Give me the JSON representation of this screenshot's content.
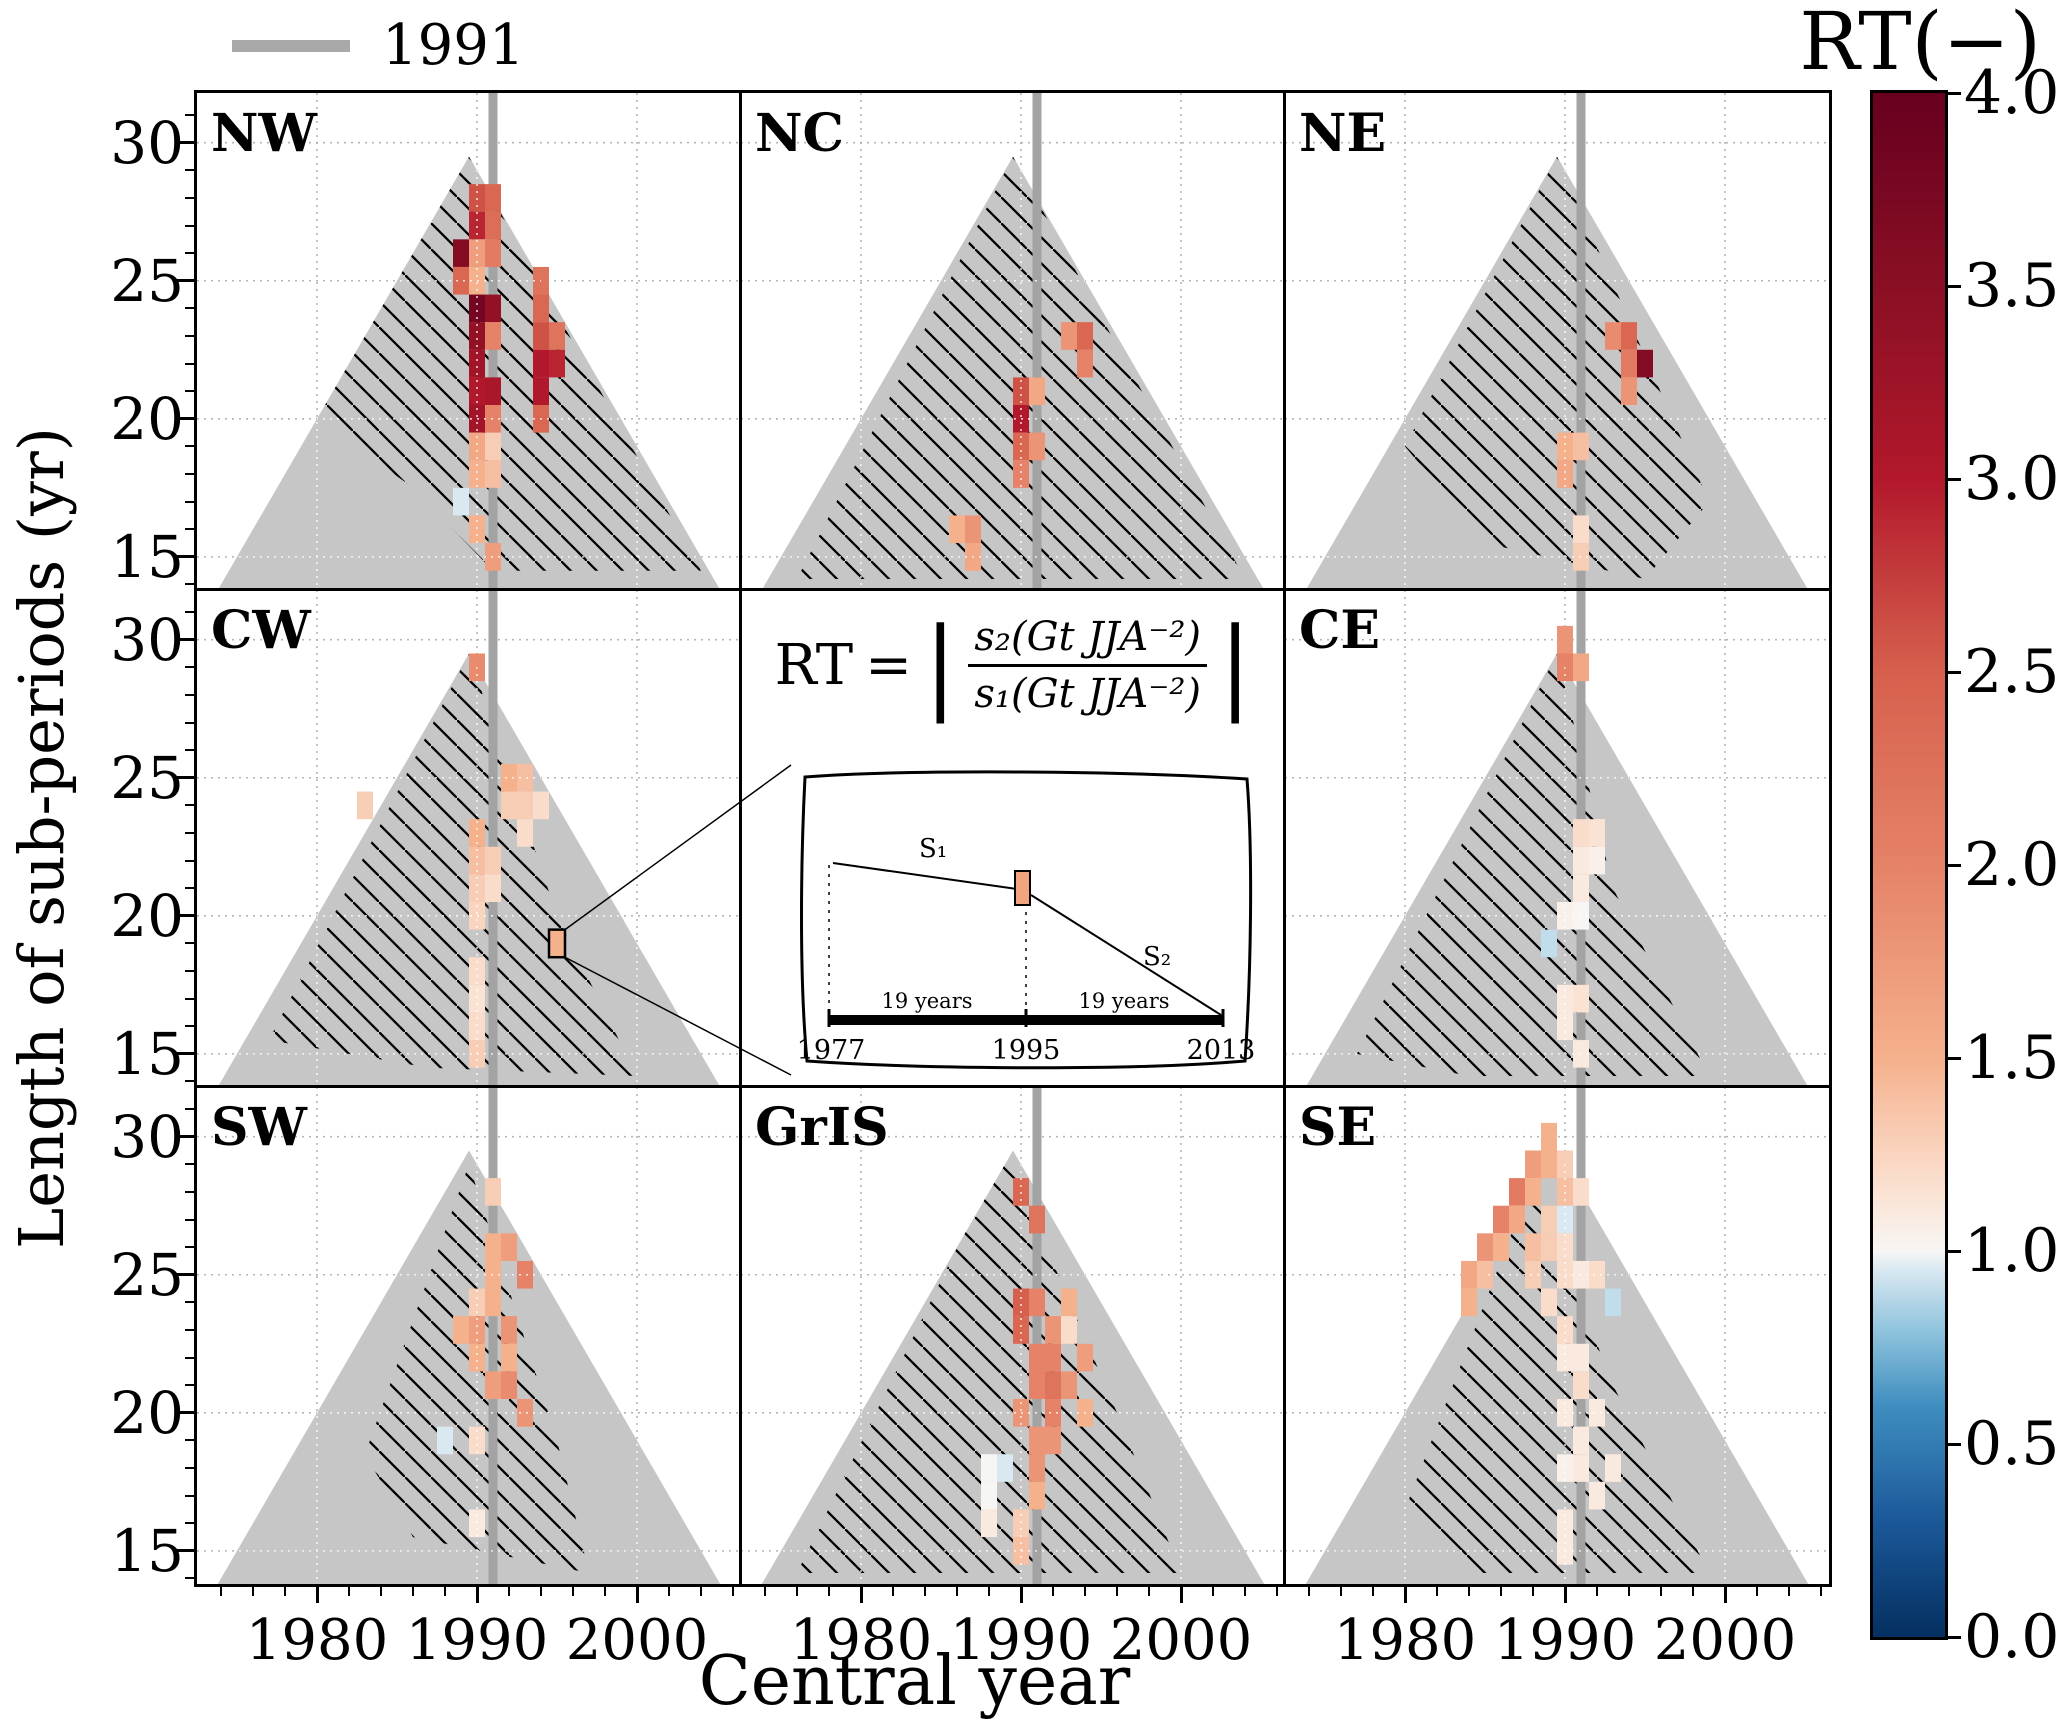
{
  "legend": {
    "label": "1991",
    "line_color": "#a9a9a9"
  },
  "formula": {
    "lhs": "RT",
    "equals": "=",
    "bar": "|",
    "numerator": "s₂(Gt JJA⁻²)",
    "denominator": "s₁(Gt JJA⁻²)"
  },
  "inset": {
    "s1_label": "S₁",
    "s2_label": "S₂",
    "left_segment": "19 years",
    "right_segment": "19 years",
    "year_start": "1977",
    "year_mid": "1995",
    "year_end": "2013",
    "cell_color": "#f2a47e"
  },
  "chart_data": {
    "type": "heatmap",
    "xlabel": "Central year",
    "ylabel": "Length of sub-periods (yr)",
    "x_ticks": [
      1980,
      1990,
      2000
    ],
    "y_ticks": [
      15,
      20,
      25,
      30
    ],
    "xlim": [
      1972.5,
      2006.5
    ],
    "ylim": [
      13.8,
      31.8
    ],
    "x_minor_step": 2,
    "y_minor_step": 1,
    "grid": true,
    "colorbar": {
      "title": "RT(−)",
      "vmin": 0,
      "vmax": 4,
      "tick_values": [
        0,
        0.5,
        1,
        1.5,
        2,
        2.5,
        3,
        3.5,
        4
      ],
      "stops": [
        [
          0.0,
          "#053061"
        ],
        [
          0.3,
          "#1b5899"
        ],
        [
          0.6,
          "#3f8ec0"
        ],
        [
          0.8,
          "#92c5de"
        ],
        [
          0.95,
          "#d9e8f1"
        ],
        [
          1.0,
          "#f7f6f4"
        ],
        [
          1.15,
          "#fbe3d4"
        ],
        [
          1.5,
          "#f5b08c"
        ],
        [
          2.0,
          "#e58267"
        ],
        [
          2.5,
          "#d6604d"
        ],
        [
          3.0,
          "#b2182b"
        ],
        [
          3.5,
          "#8a0f24"
        ],
        [
          4.0,
          "#67001f"
        ]
      ]
    },
    "reference_line": {
      "year": 1991,
      "label": "1991",
      "color": "#a3a3a3"
    },
    "triangle": {
      "apex": [
        1989.5,
        29.5
      ],
      "base_y": 13.8,
      "color": "#c6c6c6"
    },
    "highlight_cell": {
      "panel": "CW",
      "central_year": 1995,
      "length": 19
    },
    "panels": [
      {
        "label": "NW",
        "pos": [
          0,
          0
        ],
        "hatch": [
          [
            1980,
            20
          ],
          [
            1989.5,
            29.5
          ],
          [
            2004,
            14.5
          ],
          [
            1991,
            14.5
          ],
          [
            1986,
            17.5
          ]
        ],
        "cells": [
          [
            1990,
            28,
            2.6
          ],
          [
            1991,
            28,
            2.4
          ],
          [
            1990,
            27,
            2.9
          ],
          [
            1991,
            27,
            2.3
          ],
          [
            1989,
            26,
            3.6
          ],
          [
            1990,
            26,
            1.7
          ],
          [
            1991,
            26,
            2.1
          ],
          [
            1989,
            25,
            2.4
          ],
          [
            1990,
            25,
            1.5
          ],
          [
            1994,
            25,
            2.2
          ],
          [
            1990,
            24,
            3.8
          ],
          [
            1991,
            24,
            3.4
          ],
          [
            1994,
            24,
            2.4
          ],
          [
            1990,
            23,
            3.4
          ],
          [
            1991,
            23,
            2.0
          ],
          [
            1994,
            23,
            2.6
          ],
          [
            1995,
            23,
            2.2
          ],
          [
            1990,
            22,
            3.2
          ],
          [
            1994,
            22,
            3.0
          ],
          [
            1995,
            22,
            2.9
          ],
          [
            1990,
            21,
            3.0
          ],
          [
            1991,
            21,
            3.1
          ],
          [
            1994,
            21,
            3.0
          ],
          [
            1990,
            20,
            3.2
          ],
          [
            1991,
            20,
            2.0
          ],
          [
            1994,
            20,
            2.4
          ],
          [
            1990,
            19,
            1.6
          ],
          [
            1991,
            19,
            1.3
          ],
          [
            1990,
            18,
            1.5
          ],
          [
            1991,
            18,
            1.4
          ],
          [
            1989,
            17,
            0.95
          ],
          [
            1990,
            16,
            1.5
          ],
          [
            1991,
            15,
            1.7
          ]
        ]
      },
      {
        "label": "NC",
        "pos": [
          0,
          1
        ],
        "hatch": [
          [
            1976,
            14.2
          ],
          [
            1989.5,
            29.5
          ],
          [
            2004,
            14.2
          ]
        ],
        "cells": [
          [
            1993,
            23,
            1.8
          ],
          [
            1994,
            23,
            2.4
          ],
          [
            1994,
            22,
            2.0
          ],
          [
            1990,
            21,
            2.6
          ],
          [
            1991,
            21,
            1.6
          ],
          [
            1990,
            20,
            3.0
          ],
          [
            1990,
            19,
            2.4
          ],
          [
            1991,
            19,
            1.8
          ],
          [
            1990,
            18,
            2.0
          ],
          [
            1986,
            16,
            1.5
          ],
          [
            1987,
            16,
            1.8
          ],
          [
            1987,
            15,
            1.6
          ]
        ]
      },
      {
        "label": "NE",
        "pos": [
          0,
          2
        ],
        "hatch": [
          [
            1980,
            19
          ],
          [
            1989.5,
            29.5
          ],
          [
            1999,
            17
          ],
          [
            1995,
            14.2
          ],
          [
            1985,
            15.5
          ]
        ],
        "cells": [
          [
            1993,
            23,
            1.9
          ],
          [
            1994,
            23,
            2.4
          ],
          [
            1994,
            22,
            2.1
          ],
          [
            1995,
            22,
            3.6
          ],
          [
            1994,
            21,
            1.8
          ],
          [
            1990,
            19,
            1.5
          ],
          [
            1991,
            19,
            1.4
          ],
          [
            1990,
            18,
            1.6
          ],
          [
            1991,
            16,
            1.2
          ],
          [
            1991,
            15,
            1.3
          ]
        ]
      },
      {
        "label": "CW",
        "pos": [
          1,
          0
        ],
        "hatch": [
          [
            1977,
            15.5
          ],
          [
            1989.5,
            29.5
          ],
          [
            1995,
            20
          ],
          [
            2000,
            14.2
          ],
          [
            1987,
            14.5
          ]
        ],
        "cells": [
          [
            1990,
            29,
            1.9
          ],
          [
            1983,
            24,
            1.3
          ],
          [
            1992,
            25,
            1.5
          ],
          [
            1993,
            25,
            1.4
          ],
          [
            1992,
            24,
            1.3
          ],
          [
            1993,
            24,
            1.3
          ],
          [
            1994,
            24,
            1.2
          ],
          [
            1990,
            23,
            1.5
          ],
          [
            1993,
            23,
            1.2
          ],
          [
            1990,
            22,
            1.4
          ],
          [
            1991,
            22,
            1.3
          ],
          [
            1990,
            21,
            1.3
          ],
          [
            1991,
            21,
            1.2
          ],
          [
            1990,
            20,
            1.25
          ],
          [
            1995,
            19,
            1.5
          ],
          [
            1990,
            18,
            1.2
          ],
          [
            1990,
            17,
            1.15
          ],
          [
            1990,
            16,
            1.2
          ],
          [
            1990,
            15,
            1.3
          ]
        ]
      },
      {
        "label": "CE",
        "pos": [
          1,
          2
        ],
        "hatch": [
          [
            1977,
            15
          ],
          [
            1989.5,
            29.5
          ],
          [
            1993,
            21
          ],
          [
            1999,
            14.2
          ],
          [
            1984,
            14.2
          ]
        ],
        "cells": [
          [
            1990,
            30,
            1.8
          ],
          [
            1990,
            29,
            2.0
          ],
          [
            1991,
            29,
            1.6
          ],
          [
            1991,
            23,
            1.2
          ],
          [
            1992,
            23,
            1.15
          ],
          [
            1991,
            22,
            1.1
          ],
          [
            1992,
            22,
            1.05
          ],
          [
            1991,
            21,
            1.1
          ],
          [
            1990,
            20,
            1.05
          ],
          [
            1991,
            20,
            1.0
          ],
          [
            1989,
            19,
            0.9
          ],
          [
            1990,
            17,
            1.1
          ],
          [
            1991,
            17,
            1.15
          ],
          [
            1990,
            16,
            1.1
          ],
          [
            1991,
            15,
            1.1
          ]
        ]
      },
      {
        "label": "SW",
        "pos": [
          2,
          0
        ],
        "hatch": [
          [
            1983,
            18.5
          ],
          [
            1989.5,
            29
          ],
          [
            1995,
            19
          ],
          [
            1997,
            14.2
          ],
          [
            1986,
            15.5
          ]
        ],
        "cells": [
          [
            1991,
            28,
            1.3
          ],
          [
            1991,
            26,
            1.5
          ],
          [
            1992,
            26,
            1.7
          ],
          [
            1991,
            25,
            1.5
          ],
          [
            1993,
            25,
            2.0
          ],
          [
            1990,
            24,
            1.3
          ],
          [
            1991,
            24,
            1.5
          ],
          [
            1989,
            23,
            1.5
          ],
          [
            1990,
            23,
            1.7
          ],
          [
            1992,
            23,
            1.8
          ],
          [
            1990,
            22,
            1.5
          ],
          [
            1992,
            22,
            1.5
          ],
          [
            1991,
            21,
            1.7
          ],
          [
            1992,
            21,
            1.9
          ],
          [
            1993,
            20,
            1.8
          ],
          [
            1988,
            19,
            0.95
          ],
          [
            1990,
            19,
            1.2
          ],
          [
            1990,
            16,
            1.1
          ]
        ]
      },
      {
        "label": "GrIS",
        "pos": [
          2,
          1
        ],
        "hatch": [
          [
            1976,
            14.2
          ],
          [
            1989,
            29.5
          ],
          [
            1996,
            20
          ],
          [
            2000,
            14.2
          ]
        ],
        "cells": [
          [
            1990,
            28,
            2.4
          ],
          [
            1991,
            27,
            2.2
          ],
          [
            1990,
            24,
            2.5
          ],
          [
            1991,
            24,
            2.0
          ],
          [
            1993,
            24,
            1.5
          ],
          [
            1990,
            23,
            2.4
          ],
          [
            1992,
            23,
            1.8
          ],
          [
            1993,
            23,
            1.2
          ],
          [
            1991,
            22,
            2.0
          ],
          [
            1992,
            22,
            2.0
          ],
          [
            1994,
            22,
            1.7
          ],
          [
            1991,
            21,
            2.0
          ],
          [
            1992,
            21,
            2.2
          ],
          [
            1993,
            21,
            1.8
          ],
          [
            1990,
            20,
            1.8
          ],
          [
            1992,
            20,
            2.0
          ],
          [
            1994,
            20,
            1.5
          ],
          [
            1991,
            19,
            1.8
          ],
          [
            1992,
            19,
            1.8
          ],
          [
            1988,
            18,
            1.0
          ],
          [
            1989,
            18,
            0.95
          ],
          [
            1991,
            18,
            1.8
          ],
          [
            1988,
            17,
            1.0
          ],
          [
            1991,
            17,
            1.5
          ],
          [
            1988,
            16,
            1.1
          ],
          [
            1990,
            16,
            1.3
          ],
          [
            1990,
            15,
            1.4
          ]
        ]
      },
      {
        "label": "SE",
        "pos": [
          2,
          2
        ],
        "hatch": [
          [
            1980,
            16.5
          ],
          [
            1988,
            28.5
          ],
          [
            1993,
            21
          ],
          [
            1999,
            14.2
          ],
          [
            1984,
            14.2
          ]
        ],
        "cells": [
          [
            1989,
            30,
            1.5
          ],
          [
            1988,
            29,
            1.7
          ],
          [
            1989,
            29,
            1.5
          ],
          [
            1990,
            29,
            1.3
          ],
          [
            1987,
            28,
            2.1
          ],
          [
            1988,
            28,
            1.5
          ],
          [
            1990,
            28,
            1.4
          ],
          [
            1991,
            28,
            1.2
          ],
          [
            1986,
            27,
            2.0
          ],
          [
            1987,
            27,
            1.6
          ],
          [
            1989,
            27,
            1.3
          ],
          [
            1990,
            27,
            0.95
          ],
          [
            1985,
            26,
            1.8
          ],
          [
            1986,
            26,
            1.5
          ],
          [
            1988,
            26,
            1.4
          ],
          [
            1989,
            26,
            1.3
          ],
          [
            1990,
            26,
            1.2
          ],
          [
            1984,
            25,
            1.6
          ],
          [
            1985,
            25,
            1.4
          ],
          [
            1988,
            25,
            1.3
          ],
          [
            1990,
            25,
            1.2
          ],
          [
            1991,
            25,
            1.1
          ],
          [
            1992,
            25,
            1.2
          ],
          [
            1984,
            24,
            1.5
          ],
          [
            1989,
            24,
            1.2
          ],
          [
            1993,
            24,
            0.9
          ],
          [
            1990,
            23,
            1.2
          ],
          [
            1990,
            22,
            1.1
          ],
          [
            1991,
            22,
            1.1
          ],
          [
            1991,
            21,
            1.2
          ],
          [
            1990,
            20,
            1.1
          ],
          [
            1992,
            20,
            1.1
          ],
          [
            1991,
            19,
            1.1
          ],
          [
            1990,
            18,
            1.05
          ],
          [
            1991,
            18,
            1.1
          ],
          [
            1993,
            18,
            1.1
          ],
          [
            1992,
            17,
            1.1
          ],
          [
            1990,
            16,
            1.1
          ],
          [
            1990,
            15,
            1.1
          ]
        ]
      }
    ]
  }
}
